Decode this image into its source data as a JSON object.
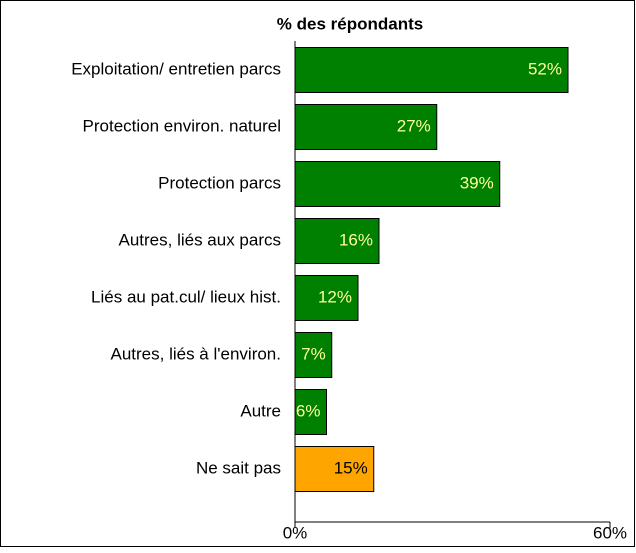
{
  "chart_data": {
    "type": "bar",
    "orientation": "horizontal",
    "title": "% des répondants",
    "categories": [
      "Exploitation/ entretien parcs",
      "Protection environ. naturel",
      "Protection parcs",
      "Autres, liés aux parcs",
      "Liés au pat.cul/ lieux hist.",
      "Autres, liés à l'environ.",
      "Autre",
      "Ne sait pas"
    ],
    "values": [
      52,
      27,
      39,
      16,
      12,
      7,
      6,
      15
    ],
    "value_labels": [
      "52%",
      "27%",
      "39%",
      "16%",
      "12%",
      "7%",
      "6%",
      "15%"
    ],
    "colors": [
      "#008000",
      "#008000",
      "#008000",
      "#008000",
      "#008000",
      "#008000",
      "#008000",
      "#ffa500"
    ],
    "label_colors": [
      "#ffff99",
      "#ffff99",
      "#ffff99",
      "#ffff99",
      "#ffff99",
      "#ffff99",
      "#ffff99",
      "#000000"
    ],
    "xlim": [
      0,
      60
    ],
    "xticks": [
      {
        "value": 0,
        "label": "0%"
      },
      {
        "value": 60,
        "label": "60%"
      }
    ]
  }
}
